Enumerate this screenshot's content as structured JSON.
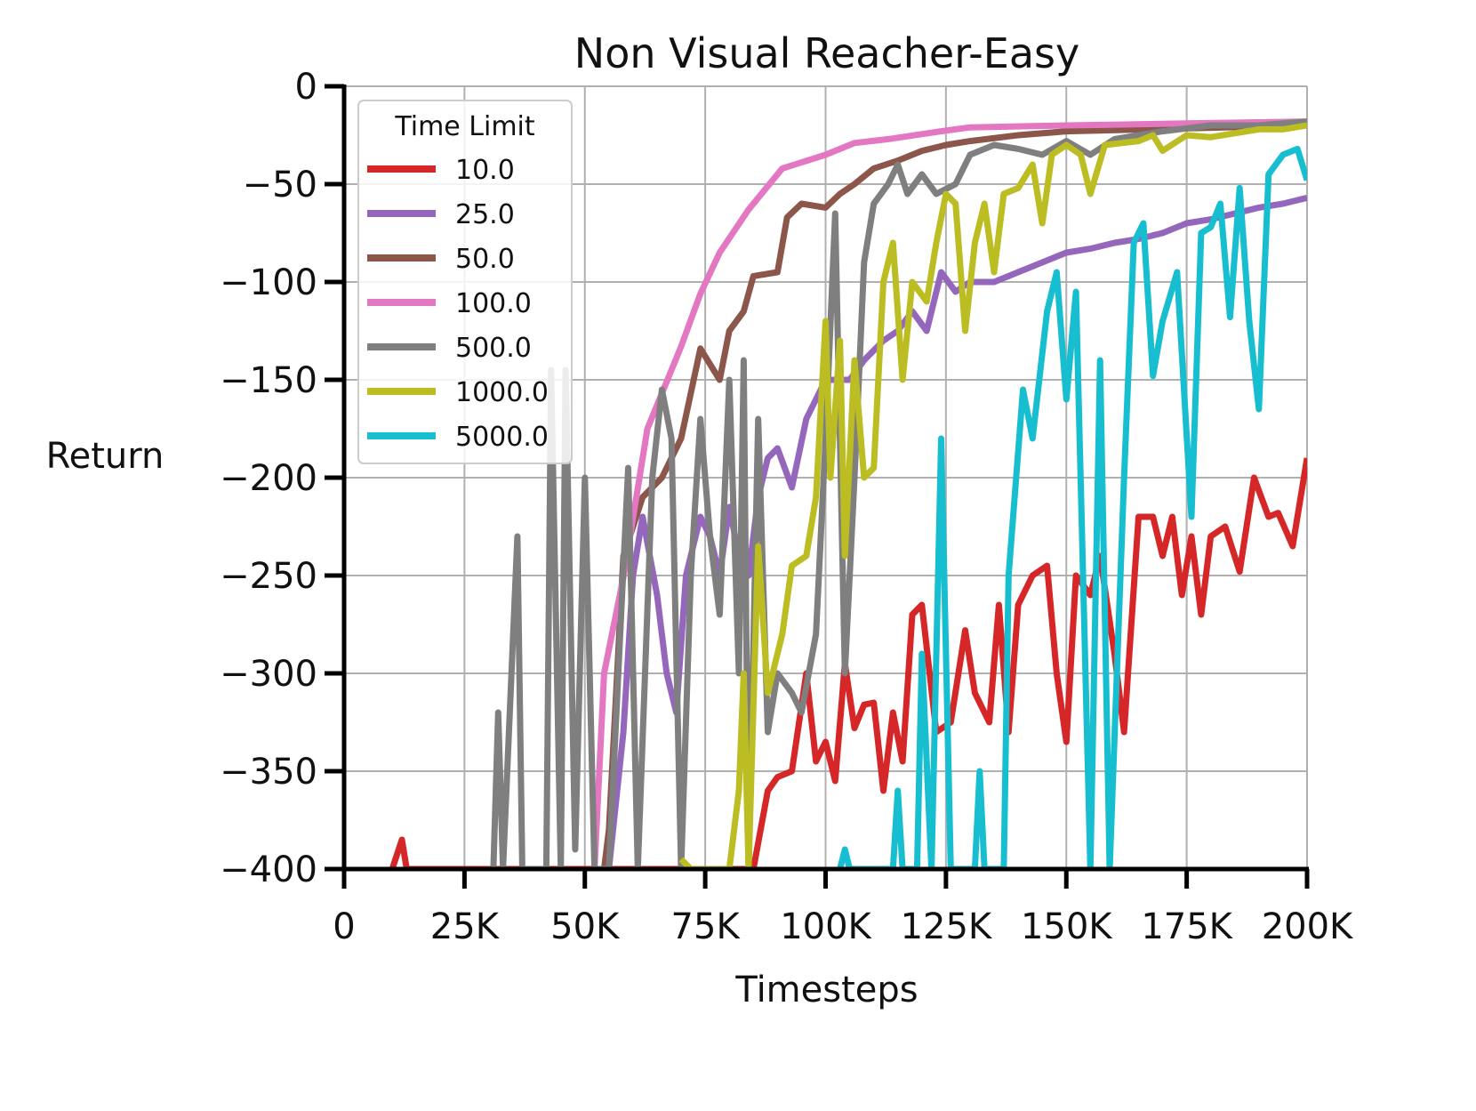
{
  "chart_data": {
    "type": "line",
    "title": "Non Visual Reacher-Easy",
    "xlabel": "Timesteps",
    "ylabel": "Return",
    "xlim": [
      0,
      200000
    ],
    "ylim": [
      -400,
      0
    ],
    "x_ticks": [
      0,
      25000,
      50000,
      75000,
      100000,
      125000,
      150000,
      175000,
      200000
    ],
    "x_tick_labels": [
      "0",
      "25K",
      "50K",
      "75K",
      "100K",
      "125K",
      "150K",
      "175K",
      "200K"
    ],
    "y_ticks": [
      0,
      -50,
      -100,
      -150,
      -200,
      -250,
      -300,
      -350,
      -400
    ],
    "y_tick_labels": [
      "0",
      "−50",
      "−100",
      "−150",
      "−200",
      "−250",
      "−300",
      "−350",
      "−400"
    ],
    "grid": true,
    "legend": {
      "title": "Time Limit",
      "placement": "upper-left"
    },
    "series": [
      {
        "name": "10.0",
        "color": "#d62728",
        "x": [
          10,
          12,
          13,
          85,
          88,
          90,
          93,
          96,
          98,
          100,
          102,
          104,
          106,
          108,
          110,
          112,
          114,
          116,
          118,
          120,
          123,
          126,
          129,
          131,
          134,
          136,
          138,
          140,
          143,
          146,
          148,
          150,
          152,
          155,
          157,
          160,
          162,
          165,
          168,
          170,
          172,
          174,
          176,
          178,
          180,
          183,
          186,
          189,
          192,
          194,
          197,
          200
        ],
        "y": [
          -400,
          -385,
          -400,
          -400,
          -360,
          -353,
          -350,
          -300,
          -345,
          -335,
          -355,
          -295,
          -328,
          -316,
          -315,
          -360,
          -320,
          -345,
          -270,
          -265,
          -330,
          -325,
          -278,
          -310,
          -325,
          -265,
          -330,
          -265,
          -250,
          -245,
          -300,
          -335,
          -250,
          -260,
          -240,
          -290,
          -330,
          -220,
          -220,
          -240,
          -220,
          -260,
          -230,
          -270,
          -230,
          -225,
          -248,
          -200,
          -220,
          -218,
          -235,
          -190
        ]
      },
      {
        "name": "25.0",
        "color": "#9467bd",
        "x": [
          55,
          58,
          60,
          62,
          65,
          67,
          69,
          71,
          74,
          76,
          78,
          80,
          82,
          84,
          86,
          88,
          90,
          93,
          96,
          100,
          105,
          108,
          112,
          115,
          118,
          121,
          124,
          127,
          130,
          135,
          140,
          145,
          150,
          155,
          160,
          165,
          170,
          175,
          180,
          185,
          190,
          195,
          200
        ],
        "y": [
          -400,
          -330,
          -250,
          -220,
          -260,
          -300,
          -320,
          -250,
          -220,
          -230,
          -250,
          -215,
          -240,
          -250,
          -210,
          -190,
          -185,
          -205,
          -170,
          -150,
          -150,
          -140,
          -130,
          -125,
          -115,
          -125,
          -95,
          -105,
          -100,
          -100,
          -95,
          -90,
          -85,
          -83,
          -80,
          -78,
          -75,
          -70,
          -68,
          -65,
          -62,
          -60,
          -57
        ]
      },
      {
        "name": "50.0",
        "color": "#8c564b",
        "x": [
          54,
          55,
          58,
          62,
          66,
          70,
          74,
          78,
          80,
          83,
          85,
          90,
          92,
          95,
          100,
          103,
          106,
          110,
          115,
          120,
          125,
          130,
          140,
          150,
          200
        ],
        "y": [
          -400,
          -380,
          -240,
          -210,
          -200,
          -180,
          -134,
          -150,
          -125,
          -115,
          -97,
          -95,
          -67,
          -60,
          -62,
          -55,
          -50,
          -42,
          -38,
          -33,
          -30,
          -28,
          -25,
          -23,
          -20
        ]
      },
      {
        "name": "100.0",
        "color": "#e377c2",
        "x": [
          52,
          54,
          58,
          63,
          70,
          74,
          78,
          84,
          91,
          100,
          106,
          113,
          124,
          130,
          150,
          175,
          200
        ],
        "y": [
          -400,
          -300,
          -251,
          -175,
          -133,
          -106,
          -85,
          -63,
          -42,
          -35,
          -29,
          -27,
          -23,
          -21,
          -20,
          -19,
          -18
        ]
      },
      {
        "name": "500.0",
        "color": "#7f7f7f",
        "x": [
          31,
          32,
          33,
          36,
          37,
          42,
          43,
          45,
          46,
          48,
          50,
          52,
          55,
          59,
          61,
          64,
          66,
          68,
          70,
          72,
          74,
          76,
          78,
          80,
          82,
          83,
          84,
          86,
          88,
          90,
          93,
          95,
          98,
          100,
          102,
          104,
          106,
          108,
          110,
          113,
          115,
          117,
          120,
          123,
          127,
          130,
          135,
          140,
          145,
          150,
          155,
          160,
          170,
          180,
          190,
          200
        ],
        "y": [
          -400,
          -320,
          -400,
          -230,
          -400,
          -400,
          -145,
          -400,
          -145,
          -390,
          -200,
          -400,
          -400,
          -195,
          -400,
          -200,
          -155,
          -180,
          -400,
          -250,
          -170,
          -230,
          -270,
          -150,
          -300,
          -140,
          -400,
          -170,
          -330,
          -300,
          -310,
          -320,
          -280,
          -180,
          -65,
          -300,
          -200,
          -90,
          -60,
          -50,
          -40,
          -55,
          -45,
          -55,
          -50,
          -35,
          -30,
          -32,
          -35,
          -28,
          -35,
          -27,
          -23,
          -20,
          -20,
          -18
        ]
      },
      {
        "name": "1000.0",
        "color": "#bcbd22",
        "x": [
          70,
          72,
          80,
          82,
          83,
          84,
          86,
          88,
          91,
          93,
          96,
          98,
          100,
          101,
          103,
          104,
          106,
          108,
          110,
          112,
          114,
          116,
          118,
          121,
          123,
          125,
          127,
          129,
          131,
          133,
          135,
          137,
          140,
          143,
          145,
          147,
          150,
          153,
          155,
          158,
          165,
          168,
          170,
          175,
          180,
          185,
          190,
          195,
          200
        ],
        "y": [
          -395,
          -400,
          -400,
          -360,
          -300,
          -400,
          -235,
          -310,
          -280,
          -245,
          -240,
          -210,
          -120,
          -200,
          -130,
          -240,
          -140,
          -200,
          -195,
          -100,
          -80,
          -150,
          -100,
          -110,
          -80,
          -55,
          -60,
          -125,
          -80,
          -60,
          -95,
          -55,
          -52,
          -40,
          -70,
          -35,
          -30,
          -35,
          -55,
          -30,
          -28,
          -25,
          -33,
          -25,
          -26,
          -24,
          -22,
          -22,
          -20
        ]
      },
      {
        "name": "5000.0",
        "color": "#17becf",
        "x": [
          103,
          104,
          105,
          114,
          115,
          116,
          119,
          120,
          122,
          124,
          126,
          131,
          132,
          133,
          137,
          138,
          141,
          143,
          146,
          148,
          150,
          152,
          155,
          157,
          159,
          162,
          164,
          166,
          168,
          170,
          173,
          176,
          178,
          180,
          182,
          184,
          186,
          188,
          190,
          192,
          195,
          198,
          200
        ],
        "y": [
          -400,
          -390,
          -400,
          -400,
          -360,
          -400,
          -400,
          -290,
          -400,
          -180,
          -400,
          -400,
          -350,
          -400,
          -400,
          -250,
          -155,
          -180,
          -115,
          -95,
          -160,
          -105,
          -400,
          -140,
          -400,
          -200,
          -80,
          -70,
          -148,
          -120,
          -95,
          -220,
          -75,
          -72,
          -60,
          -118,
          -52,
          -120,
          -165,
          -45,
          -35,
          -32,
          -48
        ]
      }
    ]
  }
}
